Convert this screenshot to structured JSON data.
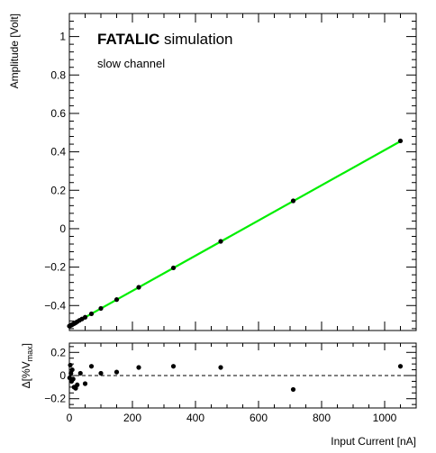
{
  "chart_data": [
    {
      "type": "scatter",
      "title_bold": "FATALIC",
      "title_rest": " simulation",
      "subtitle": "slow channel",
      "xlabel": "Input Current [nA]",
      "ylabel": "Amplitude [Volt]",
      "xlim": [
        0,
        1100
      ],
      "ylim": [
        -0.53,
        1.12
      ],
      "xticks": [
        0,
        200,
        400,
        600,
        800,
        1000
      ],
      "yticks": [
        -0.4,
        -0.2,
        0,
        0.2,
        0.4,
        0.6,
        0.8,
        1
      ],
      "ytick_labels": [
        "−0.4",
        "−0.2",
        "0",
        "0.2",
        "0.4",
        "0.6",
        "0.8",
        "1"
      ],
      "grid": false,
      "fit_color": "#00ee00",
      "point_color": "#000000",
      "fit_line": {
        "x": [
          0,
          1050
        ],
        "y": [
          -0.507,
          0.455
        ]
      },
      "series": [
        {
          "x": [
            0,
            2,
            4,
            6,
            8,
            10,
            13,
            16,
            20,
            25,
            32,
            40,
            50,
            70,
            100,
            150,
            220,
            330,
            480,
            710,
            1050
          ],
          "y": [
            -0.507,
            -0.505,
            -0.503,
            -0.502,
            -0.5,
            -0.498,
            -0.495,
            -0.493,
            -0.489,
            -0.484,
            -0.477,
            -0.47,
            -0.461,
            -0.443,
            -0.415,
            -0.369,
            -0.305,
            -0.204,
            -0.066,
            0.145,
            0.457
          ]
        }
      ]
    },
    {
      "type": "scatter",
      "xlabel": "Input Current [nA]",
      "ylabel": "Δ[%V",
      "ylabel_sub": "max",
      "ylabel_end": "]",
      "xlim": [
        0,
        1100
      ],
      "ylim": [
        -0.28,
        0.28
      ],
      "yticks": [
        -0.2,
        0,
        0.2
      ],
      "ytick_labels": [
        "−0.2",
        "0",
        "0.2"
      ],
      "reference_line": 0,
      "series": [
        {
          "x": [
            1,
            3,
            5,
            7,
            9,
            12,
            15,
            20,
            25,
            35,
            50,
            70,
            100,
            150,
            220,
            330,
            480,
            710,
            1050
          ],
          "y": [
            -0.02,
            0.09,
            0.02,
            -0.05,
            0.05,
            -0.03,
            -0.1,
            -0.11,
            -0.08,
            0.02,
            -0.07,
            0.08,
            0.02,
            0.03,
            0.07,
            0.08,
            0.07,
            -0.12,
            0.08
          ]
        }
      ]
    }
  ]
}
